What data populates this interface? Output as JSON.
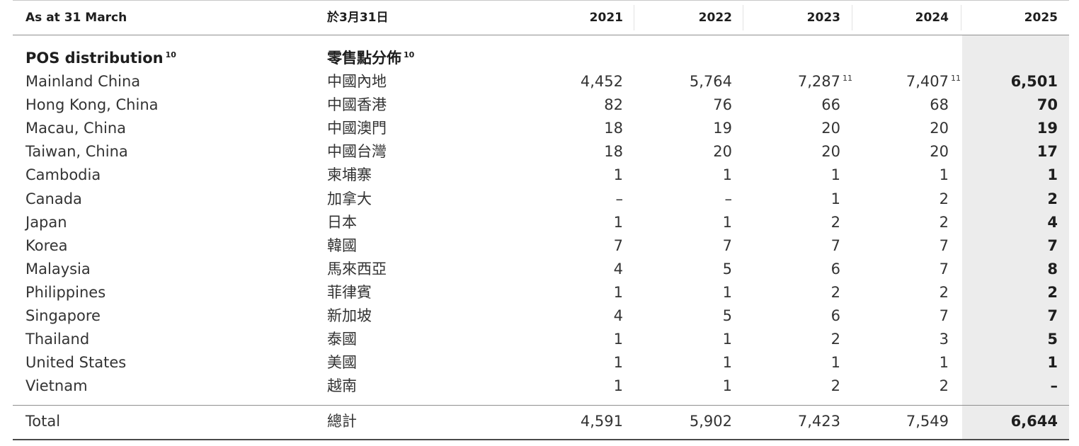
{
  "header": {
    "en": "As at 31 March",
    "zh": "於3月31日",
    "years": [
      "2021",
      "2022",
      "2023",
      "2024",
      "2025"
    ]
  },
  "section": {
    "en": "POS distribution",
    "zh": "零售點分佈",
    "footnote": "10"
  },
  "rows": [
    {
      "en": "Mainland China",
      "zh": "中國內地",
      "v2021": "4,452",
      "v2022": "5,764",
      "v2023": "7,287",
      "v2023_note": "11",
      "v2024": "7,407",
      "v2024_note": "11",
      "v2025": "6,501"
    },
    {
      "en": "Hong Kong, China",
      "zh": "中國香港",
      "v2021": "82",
      "v2022": "76",
      "v2023": "66",
      "v2024": "68",
      "v2025": "70"
    },
    {
      "en": "Macau, China",
      "zh": "中國澳門",
      "v2021": "18",
      "v2022": "19",
      "v2023": "20",
      "v2024": "20",
      "v2025": "19"
    },
    {
      "en": "Taiwan, China",
      "zh": "中國台灣",
      "v2021": "18",
      "v2022": "20",
      "v2023": "20",
      "v2024": "20",
      "v2025": "17"
    },
    {
      "en": "Cambodia",
      "zh": "柬埔寨",
      "v2021": "1",
      "v2022": "1",
      "v2023": "1",
      "v2024": "1",
      "v2025": "1"
    },
    {
      "en": "Canada",
      "zh": "加拿大",
      "v2021": "–",
      "v2022": "–",
      "v2023": "1",
      "v2024": "2",
      "v2025": "2"
    },
    {
      "en": "Japan",
      "zh": "日本",
      "v2021": "1",
      "v2022": "1",
      "v2023": "2",
      "v2024": "2",
      "v2025": "4"
    },
    {
      "en": "Korea",
      "zh": "韓國",
      "v2021": "7",
      "v2022": "7",
      "v2023": "7",
      "v2024": "7",
      "v2025": "7"
    },
    {
      "en": "Malaysia",
      "zh": "馬來西亞",
      "v2021": "4",
      "v2022": "5",
      "v2023": "6",
      "v2024": "7",
      "v2025": "8"
    },
    {
      "en": "Philippines",
      "zh": "菲律賓",
      "v2021": "1",
      "v2022": "1",
      "v2023": "2",
      "v2024": "2",
      "v2025": "2"
    },
    {
      "en": "Singapore",
      "zh": "新加坡",
      "v2021": "4",
      "v2022": "5",
      "v2023": "6",
      "v2024": "7",
      "v2025": "7"
    },
    {
      "en": "Thailand",
      "zh": "泰國",
      "v2021": "1",
      "v2022": "1",
      "v2023": "2",
      "v2024": "3",
      "v2025": "5"
    },
    {
      "en": "United States",
      "zh": "美國",
      "v2021": "1",
      "v2022": "1",
      "v2023": "1",
      "v2024": "1",
      "v2025": "1"
    },
    {
      "en": "Vietnam",
      "zh": "越南",
      "v2021": "1",
      "v2022": "1",
      "v2023": "2",
      "v2024": "2",
      "v2025": "–"
    }
  ],
  "total": {
    "en": "Total",
    "zh": "總計",
    "v2021": "4,591",
    "v2022": "5,902",
    "v2023": "7,423",
    "v2024": "7,549",
    "v2025": "6,644"
  }
}
